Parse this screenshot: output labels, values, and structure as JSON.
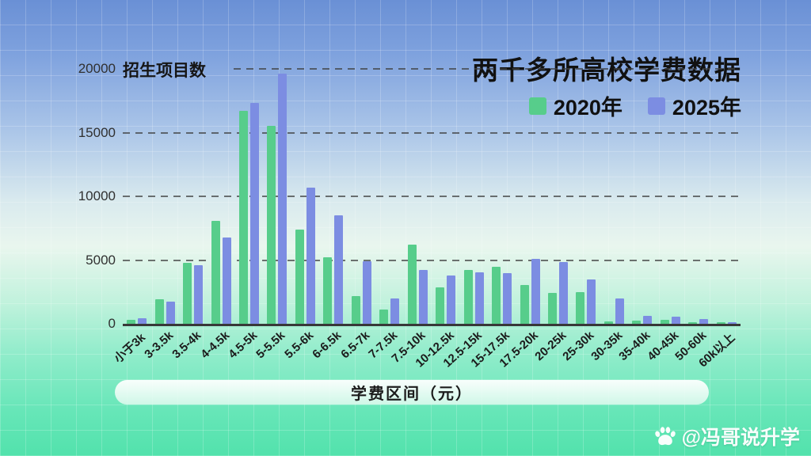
{
  "chart_data": {
    "type": "bar",
    "title": "两千多所高校学费数据",
    "ylabel": "招生项目数",
    "xlabel": "学费区间（元）",
    "ylim": [
      0,
      20000
    ],
    "yticks": [
      0,
      5000,
      10000,
      15000,
      20000
    ],
    "grid": "horizontal-dashed",
    "legend_position": "top-right",
    "categories": [
      "小于3k",
      "3-3.5k",
      "3.5-4k",
      "4-4.5k",
      "4.5-5k",
      "5-5.5k",
      "5.5-6k",
      "6-6.5k",
      "6.5-7k",
      "7-7.5k",
      "7.5-10k",
      "10-12.5k",
      "12.5-15k",
      "15-17.5k",
      "17.5-20k",
      "20-25k",
      "25-30k",
      "30-35k",
      "35-40k",
      "40-45k",
      "50-60k",
      "60k以上"
    ],
    "series": [
      {
        "name": "2020年",
        "color": "#57cd8b",
        "values": [
          300,
          1900,
          4800,
          8100,
          16700,
          15500,
          7400,
          5200,
          2200,
          1150,
          6200,
          2850,
          4200,
          4450,
          3050,
          2400,
          2500,
          200,
          250,
          300,
          150,
          100
        ]
      },
      {
        "name": "2025年",
        "color": "#7c8de2",
        "values": [
          450,
          1750,
          4600,
          6800,
          17300,
          19600,
          10700,
          8500,
          4900,
          2000,
          4200,
          3800,
          4050,
          4000,
          5100,
          4850,
          3500,
          2000,
          650,
          550,
          400,
          150
        ]
      }
    ]
  },
  "watermark": {
    "icon": "baidu-paw-icon",
    "text": "@冯哥说升学"
  },
  "colors": {
    "background_top": "#6a90d5",
    "background_bottom": "#52e2ac",
    "axis": "#383838",
    "title_text": "#111111"
  }
}
